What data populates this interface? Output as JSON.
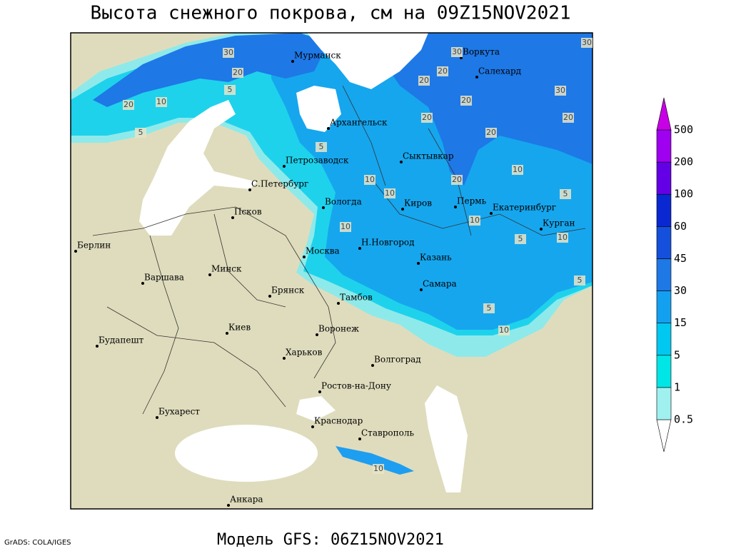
{
  "title": "Высота снежного покрова, см на 09Z15NOV2021",
  "footer": "Модель GFS: 06Z15NOV2021",
  "credit": "GrADS: COLA/IGES",
  "cities": [
    "Мурманск",
    "Воркута",
    "Салехард",
    "Архангельск",
    "Сыктывкар",
    "Петрозаводск",
    "С.Петербург",
    "Вологда",
    "Киров",
    "Пермь",
    "Екатеринбург",
    "Курган",
    "Псков",
    "Берлин",
    "Москва",
    "Н.Новгород",
    "Казань",
    "Минск",
    "Варшава",
    "Самара",
    "Брянск",
    "Тамбов",
    "Киев",
    "Воронеж",
    "Будапешт",
    "Харьков",
    "Волгоград",
    "Ростов-на-Дону",
    "Бухарест",
    "Краснодар",
    "Ставрополь",
    "Анкара"
  ],
  "contour_labels": [
    "30",
    "20",
    "5",
    "20",
    "10",
    "5",
    "30",
    "20",
    "20",
    "30",
    "20",
    "20",
    "20",
    "20",
    "5",
    "10",
    "20",
    "10",
    "10",
    "5",
    "10",
    "10",
    "5",
    "10",
    "5",
    "5",
    "10",
    "10",
    "30"
  ],
  "legend": {
    "levels": [
      0.5,
      1,
      5,
      15,
      30,
      45,
      60,
      100,
      200,
      500
    ],
    "colors": [
      "#ffffff",
      "#a0f0f0",
      "#00e6e6",
      "#00c8f0",
      "#14a0f0",
      "#1e78e6",
      "#1450dc",
      "#0a28d2",
      "#6400e6",
      "#a000f0",
      "#c800e6"
    ]
  }
}
